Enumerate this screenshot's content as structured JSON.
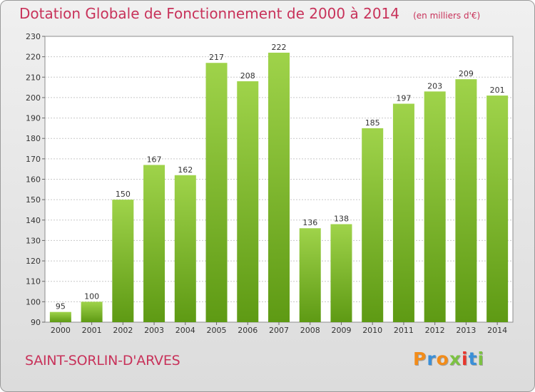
{
  "chart_data": {
    "type": "bar",
    "title": "Dotation Globale de Fonctionnement de 2000 à 2014",
    "subtitle": "(en milliers d'€)",
    "categories": [
      "2000",
      "2001",
      "2002",
      "2003",
      "2004",
      "2005",
      "2006",
      "2007",
      "2008",
      "2009",
      "2010",
      "2011",
      "2012",
      "2013",
      "2014"
    ],
    "values": [
      95,
      100,
      150,
      167,
      162,
      217,
      208,
      222,
      136,
      138,
      185,
      197,
      203,
      209,
      201
    ],
    "ylim": [
      90,
      230
    ],
    "yticks": [
      90,
      100,
      110,
      120,
      130,
      140,
      150,
      160,
      170,
      180,
      190,
      200,
      210,
      220,
      230
    ],
    "grid": true,
    "bar_color_top": "#9fd34a",
    "bar_color_bottom": "#5e9a14"
  },
  "commune": "SAINT-SORLIN-D'ARVES",
  "logo": {
    "letters": [
      "P",
      "r",
      "o",
      "x",
      "i",
      "t",
      "i"
    ],
    "colors": [
      "#f28c1a",
      "#3a8fd8",
      "#f28c1a",
      "#7cc242",
      "#e8362c",
      "#3a8fd8",
      "#7cc242"
    ]
  }
}
